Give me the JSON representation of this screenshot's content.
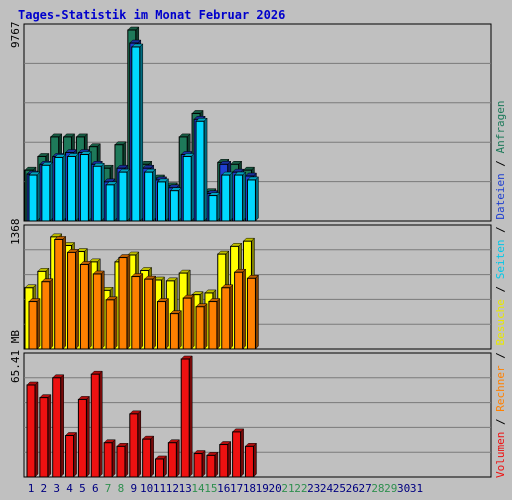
{
  "title": "Tages-Statistik im Monat Februar 2026",
  "colors": {
    "background": "#c0c0c0",
    "plot_bg": "#c0c0c0",
    "title": "#0000cc",
    "anfragen": "#1e7a5a",
    "dateien": "#2040d0",
    "seiten": "#00d8ff",
    "besuche": "#ffff00",
    "rechner": "#ff8000",
    "volumen": "#ee1111",
    "weekday_label": "#000080",
    "weekend_label": "#2f8f4f",
    "grid": "#7a7a7a"
  },
  "legend_right": [
    {
      "text": "Volumen",
      "color": "#ee1111"
    },
    {
      "text": "Rechner",
      "color": "#ff8000"
    },
    {
      "text": "Besuche",
      "color": "#e8e800"
    },
    {
      "text": "Seiten",
      "color": "#00c8e8"
    },
    {
      "text": "Dateien",
      "color": "#2040d0"
    },
    {
      "text": "Anfragen",
      "color": "#1e7a5a"
    }
  ],
  "legend_separator": " / ",
  "chart_data": [
    {
      "type": "bar",
      "panel": "hits",
      "y_max_label": "9767",
      "ylim": [
        0,
        9767
      ],
      "grid": true,
      "x": [
        "1",
        "2",
        "3",
        "4",
        "5",
        "6",
        "7",
        "8",
        "9",
        "10",
        "11",
        "12",
        "13",
        "14",
        "15",
        "16",
        "17",
        "18",
        "19",
        "20",
        "21",
        "22",
        "23",
        "24",
        "25",
        "26",
        "27",
        "28",
        "29",
        "30",
        "31"
      ],
      "x_weekend": [
        false,
        false,
        false,
        false,
        false,
        false,
        true,
        true,
        false,
        false,
        false,
        false,
        false,
        true,
        true,
        false,
        false,
        false,
        false,
        false,
        true,
        true,
        false,
        false,
        false,
        false,
        false,
        true,
        true,
        false,
        false
      ],
      "series": [
        {
          "name": "Anfragen",
          "values": [
            2600,
            3300,
            4300,
            4300,
            4300,
            3800,
            2700,
            3900,
            9767,
            2900,
            2200,
            1800,
            4300,
            5500,
            1500,
            3000,
            2900,
            2600,
            0,
            0,
            0,
            0,
            0,
            0,
            0,
            0,
            0,
            0,
            0,
            0,
            0
          ]
        },
        {
          "name": "Dateien",
          "values": [
            2400,
            2900,
            3300,
            3500,
            3500,
            2900,
            2000,
            2700,
            9100,
            2700,
            2100,
            1700,
            3400,
            5200,
            1400,
            2900,
            2500,
            2300,
            0,
            0,
            0,
            0,
            0,
            0,
            0,
            0,
            0,
            0,
            0,
            0,
            0
          ]
        },
        {
          "name": "Seiten",
          "values": [
            2350,
            2850,
            3250,
            3300,
            3400,
            2800,
            1850,
            2500,
            8900,
            2500,
            2000,
            1550,
            3300,
            5100,
            1300,
            2350,
            2350,
            2100,
            0,
            0,
            0,
            0,
            0,
            0,
            0,
            0,
            0,
            0,
            0,
            0,
            0
          ]
        }
      ]
    },
    {
      "type": "bar",
      "panel": "visits",
      "y_max_label": "1368",
      "ylim": [
        0,
        1368
      ],
      "grid": true,
      "series": [
        {
          "name": "Besuche",
          "values": [
            710,
            900,
            1300,
            1200,
            1130,
            1010,
            680,
            1010,
            1090,
            910,
            800,
            790,
            880,
            630,
            650,
            1100,
            1190,
            1250,
            0,
            0,
            0,
            0,
            0,
            0,
            0,
            0,
            0,
            0,
            0,
            0,
            0
          ]
        },
        {
          "name": "Rechner",
          "values": [
            550,
            780,
            1270,
            1120,
            980,
            870,
            570,
            1060,
            840,
            810,
            550,
            410,
            590,
            490,
            550,
            710,
            890,
            820,
            0,
            0,
            0,
            0,
            0,
            0,
            0,
            0,
            0,
            0,
            0,
            0,
            0
          ]
        }
      ]
    },
    {
      "type": "bar",
      "panel": "volume",
      "y_max_label": "65.41 MB",
      "ylim": [
        0,
        65.41
      ],
      "grid": true,
      "series": [
        {
          "name": "Volumen",
          "values": [
            51,
            44,
            55,
            23,
            43,
            57,
            19,
            17,
            35,
            21,
            10,
            19,
            65.41,
            13,
            12,
            18,
            25,
            17,
            0,
            0,
            0,
            0,
            0,
            0,
            0,
            0,
            0,
            0,
            0,
            0,
            0
          ]
        }
      ]
    }
  ]
}
